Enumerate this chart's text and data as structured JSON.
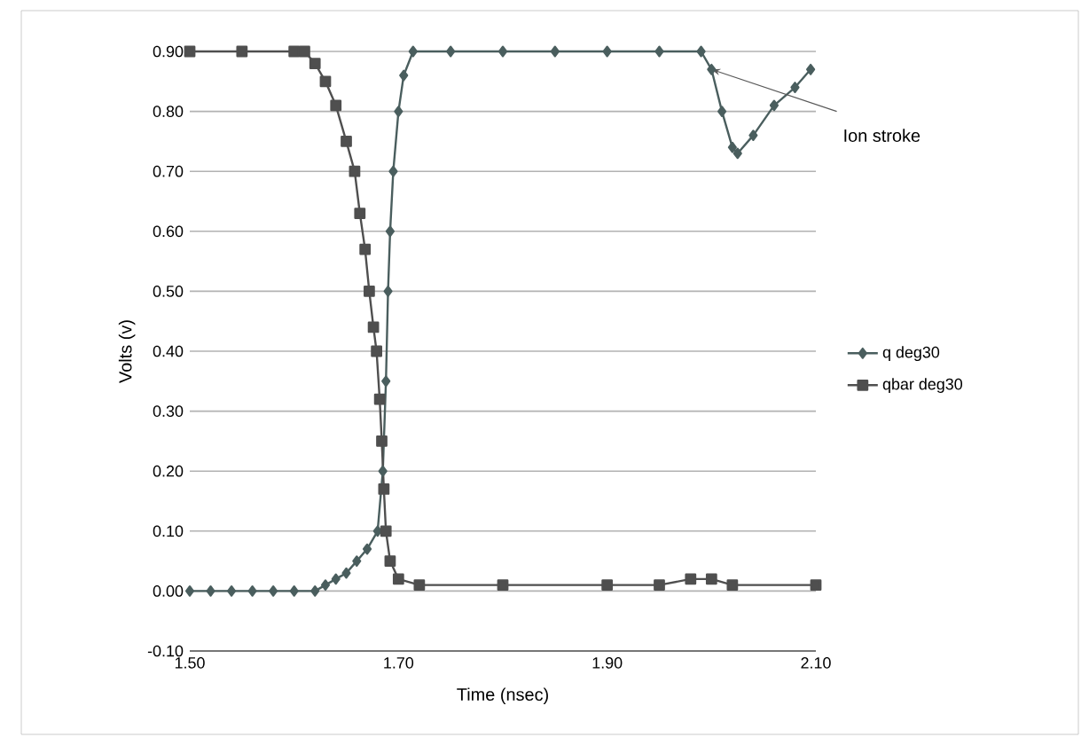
{
  "chart_data": {
    "type": "line",
    "xlabel": "Time (nsec)",
    "ylabel": "Volts (v)",
    "xlim": [
      1.5,
      2.1
    ],
    "ylim": [
      -0.1,
      0.9
    ],
    "xticks": [
      {
        "value": 1.5,
        "label": "1.50"
      },
      {
        "value": 1.7,
        "label": "1.70"
      },
      {
        "value": 1.9,
        "label": "1.90"
      },
      {
        "value": 2.1,
        "label": "2.10"
      }
    ],
    "yticks": [
      {
        "value": -0.1,
        "label": "-0.10"
      },
      {
        "value": 0,
        "label": "0.00"
      },
      {
        "value": 0.1,
        "label": "0.10"
      },
      {
        "value": 0.2,
        "label": "0.20"
      },
      {
        "value": 0.3,
        "label": "0.30"
      },
      {
        "value": 0.4,
        "label": "0.40"
      },
      {
        "value": 0.5,
        "label": "0.50"
      },
      {
        "value": 0.6,
        "label": "0.60"
      },
      {
        "value": 0.7,
        "label": "0.70"
      },
      {
        "value": 0.8,
        "label": "0.80"
      },
      {
        "value": 0.9,
        "label": "0.90"
      }
    ],
    "grid": "y",
    "legend": "right",
    "series": [
      {
        "name": "q deg30",
        "color": "#4a5e5e",
        "marker": "diamond",
        "x": [
          1.5,
          1.52,
          1.54,
          1.56,
          1.58,
          1.6,
          1.62,
          1.63,
          1.64,
          1.65,
          1.66,
          1.67,
          1.68,
          1.685,
          1.688,
          1.69,
          1.692,
          1.695,
          1.7,
          1.705,
          1.714,
          1.75,
          1.8,
          1.85,
          1.9,
          1.95,
          1.99,
          2.0,
          2.01,
          2.02,
          2.025,
          2.04,
          2.06,
          2.08,
          2.095
        ],
        "values": [
          0,
          0,
          0,
          0,
          0,
          0,
          0,
          0.01,
          0.02,
          0.03,
          0.05,
          0.07,
          0.1,
          0.2,
          0.35,
          0.5,
          0.6,
          0.7,
          0.8,
          0.86,
          0.9,
          0.9,
          0.9,
          0.9,
          0.9,
          0.9,
          0.9,
          0.87,
          0.8,
          0.74,
          0.73,
          0.76,
          0.81,
          0.84,
          0.87
        ]
      },
      {
        "name": "qbar deg30",
        "color": "#4f4f4f",
        "marker": "square",
        "x": [
          1.5,
          1.55,
          1.6,
          1.61,
          1.62,
          1.63,
          1.64,
          1.65,
          1.658,
          1.663,
          1.668,
          1.672,
          1.676,
          1.679,
          1.682,
          1.684,
          1.686,
          1.688,
          1.692,
          1.7,
          1.72,
          1.8,
          1.9,
          1.95,
          1.98,
          2.0,
          2.02,
          2.1
        ],
        "values": [
          0.9,
          0.9,
          0.9,
          0.9,
          0.88,
          0.85,
          0.81,
          0.75,
          0.7,
          0.63,
          0.57,
          0.5,
          0.44,
          0.4,
          0.32,
          0.25,
          0.17,
          0.1,
          0.05,
          0.02,
          0.01,
          0.01,
          0.01,
          0.01,
          0.02,
          0.02,
          0.01,
          0.01
        ]
      }
    ],
    "annotations": [
      {
        "text": "Ion stroke",
        "x": 2.0,
        "y": 0.87
      }
    ]
  }
}
